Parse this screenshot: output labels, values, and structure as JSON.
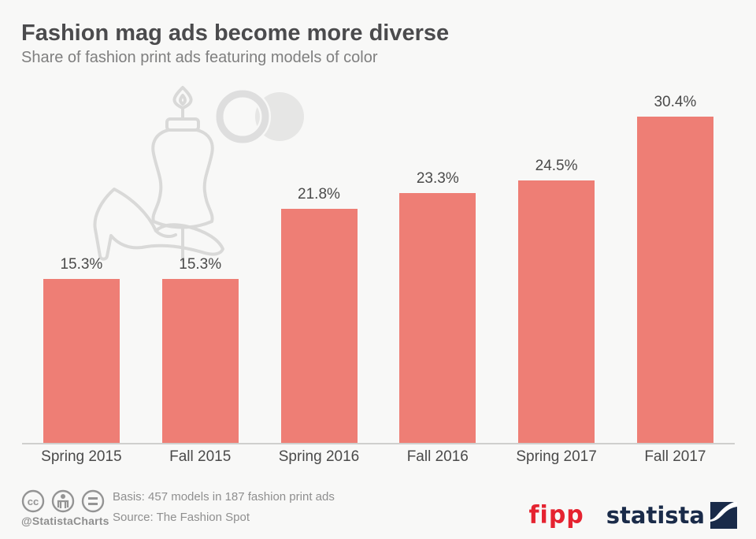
{
  "header": {
    "title": "Fashion mag ads become more diverse",
    "subtitle": "Share of fashion print ads featuring models of color"
  },
  "chart_data": {
    "type": "bar",
    "categories": [
      "Spring 2015",
      "Fall 2015",
      "Spring 2016",
      "Fall 2016",
      "Spring 2017",
      "Fall 2017"
    ],
    "values": [
      15.3,
      15.3,
      21.8,
      23.3,
      24.5,
      30.4
    ],
    "value_labels": [
      "15.3%",
      "15.3%",
      "21.8%",
      "23.3%",
      "24.5%",
      "30.4%"
    ],
    "title": "Fashion mag ads become more diverse",
    "subtitle": "Share of fashion print ads featuring models of color",
    "xlabel": "",
    "ylabel": "",
    "ylim": [
      0,
      31
    ],
    "grid": false,
    "legend": "none",
    "bar_color": "#ee7e75",
    "label_color": "#4a4a4a"
  },
  "decoration": {
    "items": [
      "high-heel-shoe",
      "dress-form-mannequin",
      "overlapping-rings"
    ],
    "line_color": "#d9d9d8",
    "fill_color": "#e6e6e5"
  },
  "footer": {
    "license_icons": [
      "cc-icon",
      "attribution-icon",
      "equal-icon"
    ],
    "handle": "@StatistaCharts",
    "basis": "Basis: 457 models in 187 fashion print ads",
    "source": "Source: The Fashion Spot",
    "fipp_label": "fipp",
    "statista_label": "statista"
  },
  "colors": {
    "background": "#f8f8f7",
    "bar": "#ee7e75",
    "title_text": "#4b4b4d",
    "subtitle_text": "#7f7f7f",
    "footer_text": "#8f8f8f",
    "axis_line": "#cfcfcd",
    "fipp_red": "#e52330",
    "statista_navy": "#1a2b49"
  }
}
